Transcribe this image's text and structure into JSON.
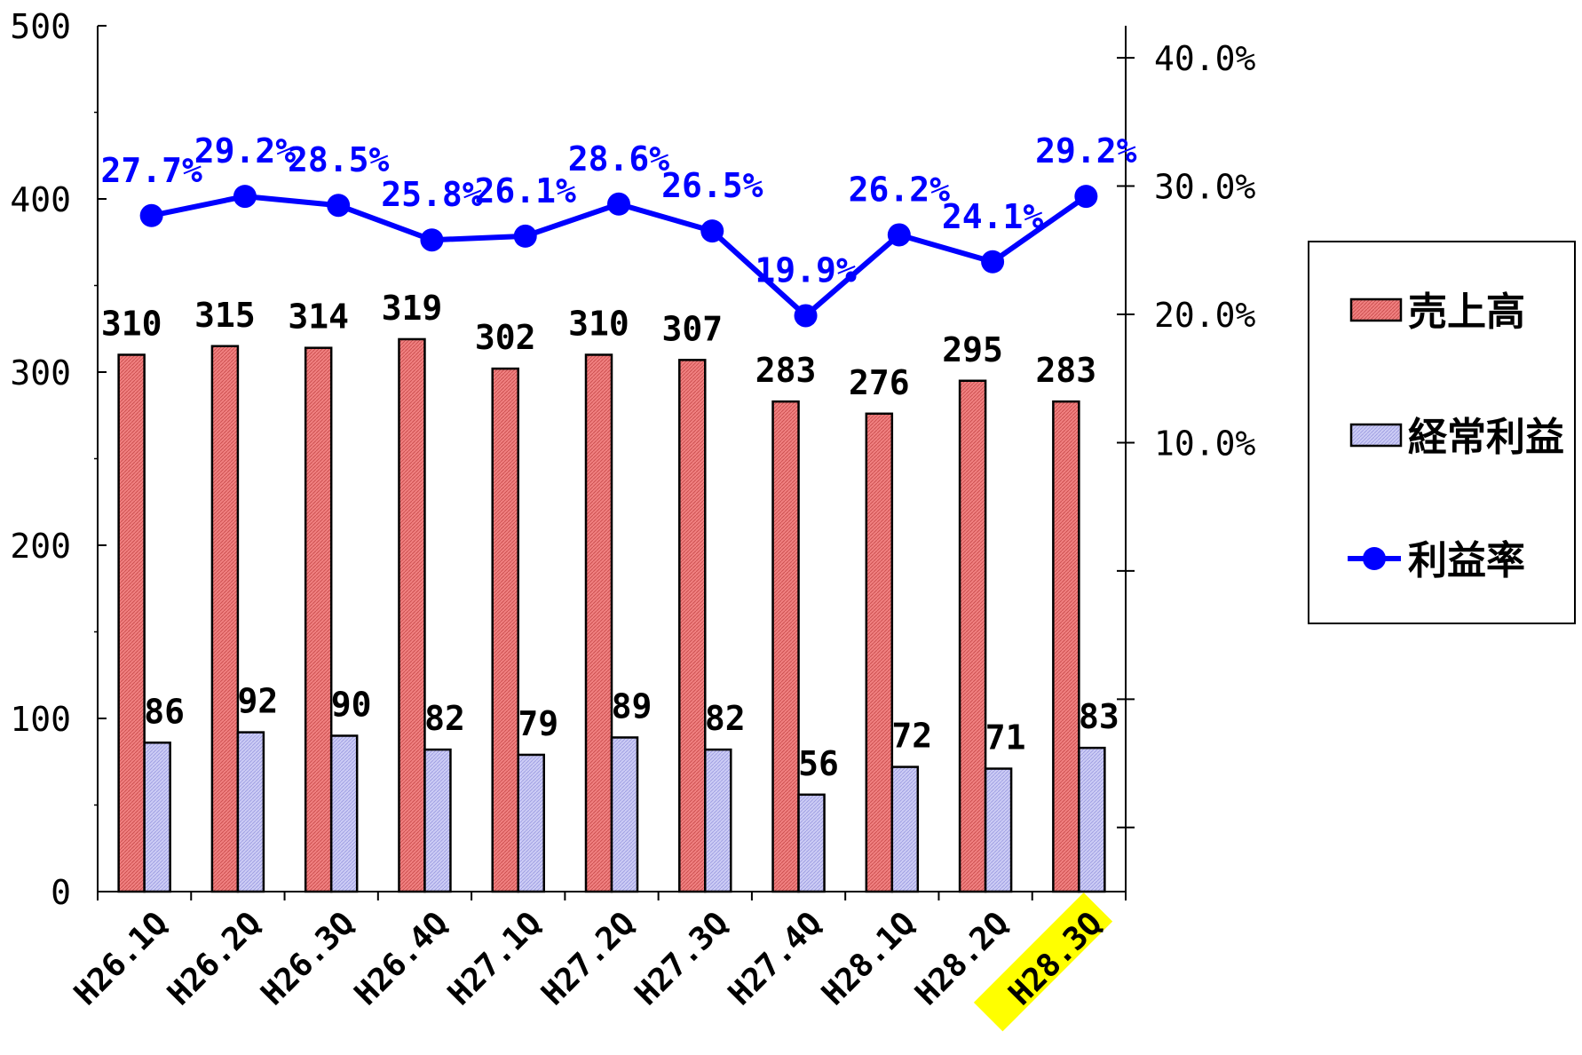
{
  "chart_data": {
    "type": "bar",
    "title": "",
    "categories": [
      "H26.1Q",
      "H26.2Q",
      "H26.3Q",
      "H26.4Q",
      "H27.1Q",
      "H27.2Q",
      "H27.3Q",
      "H27.4Q",
      "H28.1Q",
      "H28.2Q",
      "H28.3Q"
    ],
    "highlighted_category": "H28.3Q",
    "series": [
      {
        "name": "売上高",
        "kind": "bar",
        "axis": "left",
        "color": "#f08080",
        "values": [
          310,
          315,
          314,
          319,
          302,
          310,
          307,
          283,
          276,
          295,
          283
        ]
      },
      {
        "name": "経常利益",
        "kind": "bar",
        "axis": "left",
        "color": "#ccccf5",
        "values": [
          86,
          92,
          90,
          82,
          79,
          89,
          82,
          56,
          72,
          71,
          83
        ]
      },
      {
        "name": "利益率",
        "kind": "line",
        "axis": "right",
        "color": "#0000ff",
        "values": [
          27.7,
          29.2,
          28.5,
          25.8,
          26.1,
          28.6,
          26.5,
          19.9,
          26.2,
          24.1,
          29.2
        ],
        "labels": [
          "27.7%",
          "29.2%",
          "28.5%",
          "25.8%",
          "26.1%",
          "28.6%",
          "26.5%",
          "19.9%",
          "26.2%",
          "24.1%",
          "29.2%"
        ]
      }
    ],
    "y_left": {
      "min": 0,
      "max": 500,
      "ticks": [
        0,
        100,
        200,
        300,
        400,
        500
      ],
      "tick_labels": [
        "0",
        "100",
        "200",
        "300",
        "400",
        "500"
      ]
    },
    "y_right": {
      "min": -25,
      "max": 42.5,
      "ticks": [
        10,
        20,
        30,
        40
      ],
      "tick_labels": [
        "10.0%",
        "20.0%",
        "30.0%",
        "40.0%"
      ],
      "extra_tick_marks": [
        0,
        -10,
        -20
      ]
    },
    "legend": {
      "position": "right",
      "entries": [
        "売上高",
        "経常利益",
        "利益率"
      ]
    },
    "grid": false,
    "highlight_color": "#ffff00"
  }
}
